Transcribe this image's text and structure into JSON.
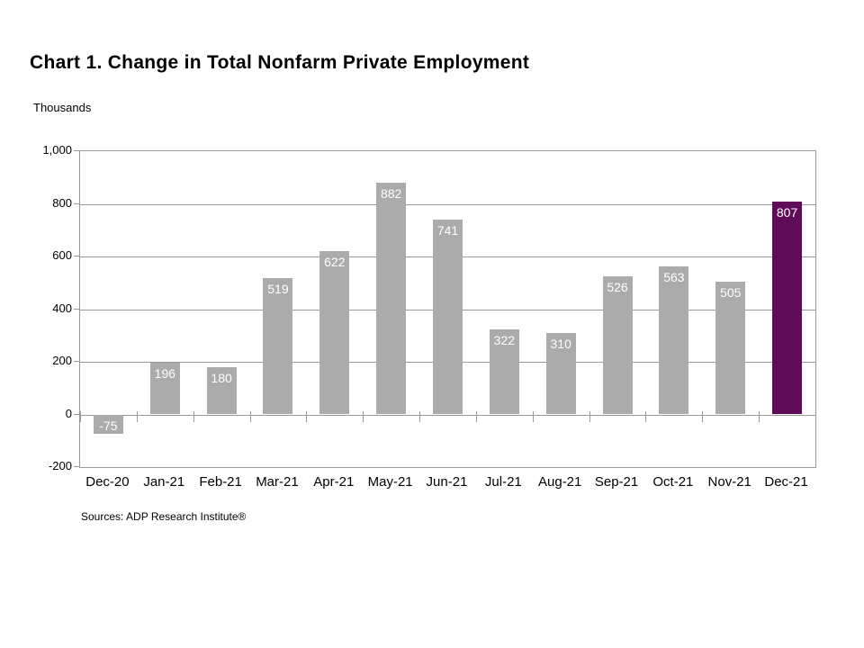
{
  "title": "Chart 1. Change in Total Nonfarm Private Employment",
  "axis_unit_label": "Thousands",
  "source_note": "Sources: ADP Research Institute®",
  "chart_data": {
    "type": "bar",
    "title": "Chart 1. Change in Total Nonfarm Private Employment",
    "ylabel": "Thousands",
    "xlabel": "",
    "categories": [
      "Dec-20",
      "Jan-21",
      "Feb-21",
      "Mar-21",
      "Apr-21",
      "May-21",
      "Jun-21",
      "Jul-21",
      "Aug-21",
      "Sep-21",
      "Oct-21",
      "Nov-21",
      "Dec-21"
    ],
    "values": [
      -75,
      196,
      180,
      519,
      622,
      882,
      741,
      322,
      310,
      526,
      563,
      505,
      807
    ],
    "value_labels_shown": true,
    "highlight_index": 12,
    "ylim": [
      -200,
      1000
    ],
    "ytick_interval": 200,
    "ytick_labels": [
      "1,000",
      "800",
      "600",
      "400",
      "200",
      "0",
      "-200"
    ],
    "grid": true,
    "legend_position": "none",
    "colors": {
      "bar_default": "#ABABAB",
      "bar_highlight": "#5F0B58",
      "value_label": "#FFFFFF",
      "gridline": "#999999",
      "text": "#000000"
    },
    "source": "Sources: ADP Research Institute®"
  }
}
